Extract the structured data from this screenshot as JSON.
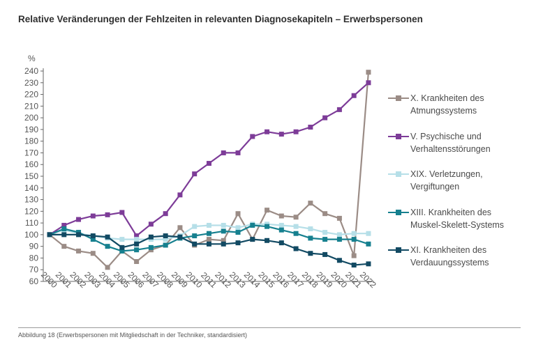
{
  "title": "Relative Veränderungen der Fehlzeiten in relevanten Diagnosekapiteln – Erwerbspersonen",
  "footer": "Abbildung 18 (Erwerbspersonen mit Mitgliedschaft in der Techniker, standardisiert)",
  "chart_data": {
    "type": "line",
    "title": "Relative Veränderungen der Fehlzeiten in relevanten Diagnosekapiteln – Erwerbspersonen",
    "ylabel": "%",
    "xlabel": "",
    "ylim": [
      60,
      240
    ],
    "yticks": [
      60,
      70,
      80,
      90,
      100,
      110,
      120,
      130,
      140,
      150,
      160,
      170,
      180,
      190,
      200,
      210,
      220,
      230,
      240
    ],
    "grid": false,
    "legend_position": "right",
    "categories": [
      "2000",
      "2001",
      "2002",
      "2003",
      "2004",
      "2005",
      "2006",
      "2007",
      "2008",
      "2009",
      "2010",
      "2011",
      "2012",
      "2013",
      "2014",
      "2015",
      "2016",
      "2017",
      "2018",
      "2019",
      "2020",
      "2021",
      "2022"
    ],
    "series": [
      {
        "name": "X. Krankheiten des Atmungssystems",
        "legend_lines": [
          "X. Krankheiten des",
          "Atmungssystems"
        ],
        "color": "#9b8c86",
        "values": [
          100,
          90,
          86,
          84,
          72,
          86,
          77,
          87,
          91,
          106,
          91,
          96,
          95,
          118,
          96,
          121,
          116,
          115,
          127,
          118,
          114,
          82,
          239
        ]
      },
      {
        "name": "V. Psychische und Verhaltensstörungen",
        "legend_lines": [
          "V. Psychische und",
          "Verhaltensstörungen"
        ],
        "color": "#7d3c98",
        "values": [
          100,
          108,
          113,
          116,
          117,
          119,
          99,
          109,
          118,
          134,
          152,
          161,
          170,
          170,
          184,
          188,
          186,
          188,
          192,
          200,
          207,
          219,
          230
        ]
      },
      {
        "name": "XIX. Verletzungen, Vergiftungen",
        "legend_lines": [
          "XIX. Verletzungen,",
          "Vergiftungen"
        ],
        "color": "#b6dfe8",
        "values": [
          100,
          104,
          101,
          99,
          97,
          96,
          96,
          96,
          96,
          99,
          107,
          108,
          108,
          106,
          109,
          109,
          108,
          107,
          105,
          102,
          100,
          101,
          101
        ]
      },
      {
        "name": "XIII. Krankheiten des Muskel-Skelett-Systems",
        "legend_lines": [
          "XIII. Krankheiten des",
          "Muskel-Skelett-Systems"
        ],
        "color": "#16808f",
        "values": [
          100,
          105,
          102,
          96,
          90,
          86,
          87,
          89,
          91,
          97,
          99,
          101,
          103,
          102,
          108,
          107,
          104,
          101,
          97,
          96,
          96,
          96,
          92
        ]
      },
      {
        "name": "XI. Krankheiten des Verdauungssystems",
        "legend_lines": [
          "XI. Krankheiten des",
          "Verdauungssystems"
        ],
        "color": "#124a63",
        "values": [
          100,
          100,
          100,
          99,
          98,
          89,
          92,
          98,
          99,
          98,
          92,
          92,
          92,
          93,
          96,
          95,
          93,
          88,
          84,
          83,
          78,
          74,
          75
        ]
      }
    ]
  }
}
